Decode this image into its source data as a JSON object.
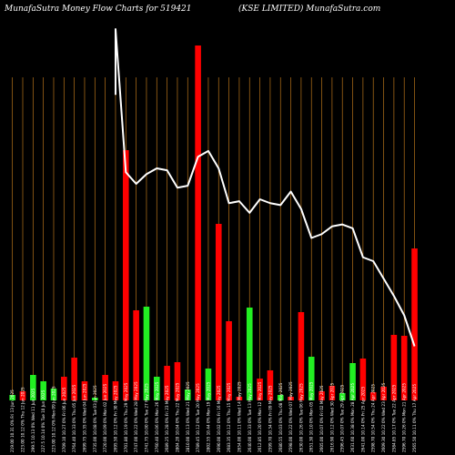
{
  "chart_data": {
    "type": "bar",
    "title_left": "MunafaSutra  Money Flow  Charts for 519421",
    "title_right": "(KSE LIMITED) MunafaSutra.com",
    "colors": {
      "background": "#000000",
      "grid": "#b8741a",
      "up": "#22ee22",
      "down": "#ff0000",
      "line": "#ffffff",
      "text": "#ffffff"
    },
    "categories": [
      "Fri 13 Jun 2025",
      "Thu 12 Jun 2025",
      "Wed 11 Jun 2025",
      "Tue 10 Jun 2025",
      "Mon 09 Jun 2025",
      "Fri 06 Jun 2025",
      "Thu 05 Jun 2025",
      "Wed 04 Jun 2025",
      "Tue 03 Jun 2025",
      "Mon 02 Jun 2025",
      "Fri 30 May 2025",
      "Thu 29 May 2025",
      "Wed 28 May 2025",
      "Tue 27 May 2025",
      "Mon 26 May 2025",
      "Fri 23 May 2025",
      "Thu 22 May 2025",
      "Wed 21 May 2025",
      "Tue 20 May 2025",
      "Mon 19 May 2025",
      "Fri 16 May 2025",
      "Thu 15 May 2025",
      "Wed 14 May 2025",
      "Tue 13 May 2025",
      "Mon 12 May 2025",
      "Fri 09 May 2025",
      "Thu 08 May 2025",
      "Wed 07 May 2025",
      "Tue 06 May 2025",
      "Mon 05 May 2025",
      "Fri 02 May 2025",
      "Wed 30 Apr 2025",
      "Tue 29 Apr 2025",
      "Mon 28 Apr 2025",
      "Fri 25 Apr 2025",
      "Thu 24 Apr 2025",
      "Wed 23 Apr 2025",
      "Tue 22 Apr 2025",
      "Mon 21 Apr 2025",
      "Thu 17 Apr 2025"
    ],
    "x_tick_labels": [
      "219.00 10.31 0% ",
      "223.00 10.12 0% ",
      "299.5 10.13 0% ",
      "227.5 10.14 0% ",
      "223.00 10.12 0% ",
      "2709.10 10.27 0% ",
      "2764.40 10.33 0% ",
      "2699.75 10.35 0% ",
      "2735.00 10.08 0% ",
      "2720.00 10.09 0% ",
      "2695.50 10.12 0% ",
      "2701.80 10.19 0% ",
      "2747.00 10.22 0% ",
      "2741.75 10.00 0% ",
      "2760.40 10.06 0% ",
      "2689.25 10.28 0% ",
      "2804.20 10.04 0% ",
      "2810.00 10.13 0% ",
      "2789.45 10.12 0% ",
      "2802.55 10.44 0% ",
      "2690.00 10.02 0% ",
      "2683.35 10.12 0% ",
      "2654.00 10.11 0% ",
      "2640.00 10.33 0% ",
      "2612.85 10.20 0% ",
      "2599.70 10.34 0% ",
      "2680.55 10.03 0% ",
      "2598.00 10.22 0% ",
      "2630.00 10.26 0% ",
      "2651.30 10.10 0% ",
      "2605.00 10.07 0% ",
      "2616.90 10.12 0% ",
      "2596.45 10.07 0% ",
      "2631.60 10.38 0% ",
      "2641.00 10.14 0% ",
      "2598.70 10.54 0% ",
      "2609.30 10.22 0% ",
      "2584.85 10.17 0% ",
      "2596.70 10.26 0% ",
      "2565.50 10.11 0% "
    ],
    "bar_colors": [
      "up",
      "down",
      "up",
      "up",
      "up",
      "down",
      "down",
      "down",
      "up",
      "down",
      "down",
      "down",
      "down",
      "up",
      "up",
      "down",
      "down",
      "up",
      "down",
      "up",
      "down",
      "down",
      "down",
      "up",
      "down",
      "down",
      "up",
      "down",
      "down",
      "up",
      "down",
      "down",
      "up",
      "up",
      "down",
      "down",
      "down",
      "down",
      "down",
      "down"
    ],
    "values": [
      6,
      10,
      28,
      21,
      13,
      26,
      47,
      21,
      3,
      28,
      21,
      275,
      99,
      103,
      26,
      38,
      42,
      12,
      390,
      35,
      194,
      87,
      4,
      102,
      24,
      33,
      6,
      4,
      97,
      48,
      10,
      16,
      8,
      41,
      46,
      9,
      15,
      72,
      71,
      167
    ],
    "line_values": [
      null,
      null,
      null,
      null,
      null,
      null,
      null,
      null,
      null,
      null,
      null,
      2790,
      2760,
      2785,
      2800,
      2795,
      2750,
      2755,
      2830,
      2845,
      2800,
      2710,
      2715,
      2685,
      2720,
      2710,
      2705,
      2740,
      2695,
      2620,
      2630,
      2650,
      2655,
      2645,
      2570,
      2560,
      2515,
      2470,
      2420,
      2340
    ],
    "line_lead_in": [
      2990,
      3160
    ],
    "ylim": [
      0,
      395
    ],
    "line_ylim": [
      2200,
      3000
    ],
    "grid": "vertical"
  }
}
